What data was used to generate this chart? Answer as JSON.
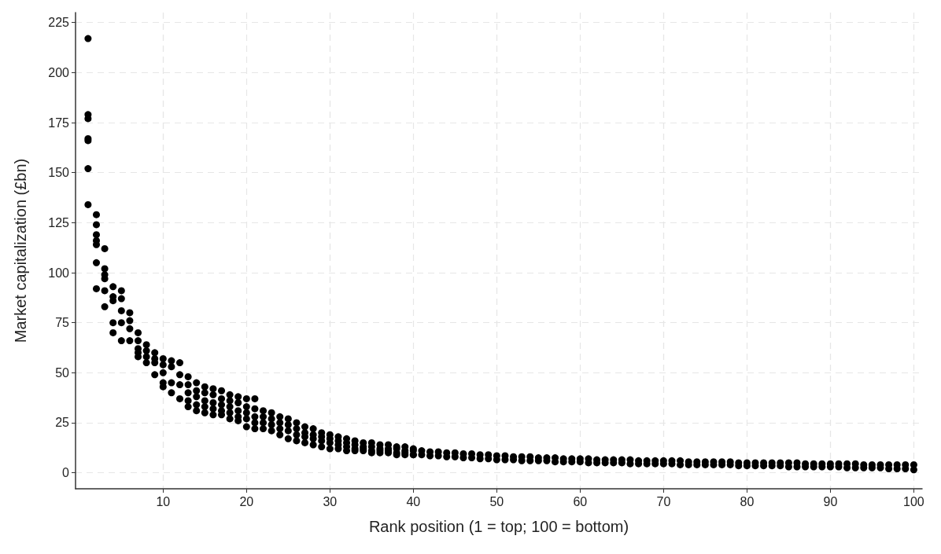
{
  "chart_data": {
    "type": "scatter",
    "xlabel": "Rank position (1 = top; 100 = bottom)",
    "ylabel": "Market capitalization (£bn)",
    "xlim": [
      -0.5,
      101
    ],
    "xticks": [
      10,
      20,
      30,
      40,
      50,
      60,
      70,
      80,
      90,
      100
    ],
    "ylim": [
      -8,
      230
    ],
    "yticks": [
      0,
      25,
      50,
      75,
      100,
      125,
      150,
      175,
      200,
      225
    ],
    "grid": true,
    "marker": "circle",
    "series": [
      {
        "color": "#000000",
        "x": [
          1,
          1,
          1,
          1,
          1,
          1,
          1,
          2,
          2,
          2,
          2,
          2,
          2,
          2,
          3,
          3,
          3,
          3,
          3,
          3,
          4,
          4,
          4,
          4,
          4,
          5,
          5,
          5,
          5,
          5,
          6,
          6,
          6,
          6,
          7,
          7,
          7,
          7,
          7,
          8,
          8,
          8,
          8,
          9,
          9,
          9,
          9,
          10,
          10,
          10,
          10,
          10,
          11,
          11,
          11,
          11,
          12,
          12,
          12,
          12,
          13,
          13,
          13,
          13,
          13,
          14,
          14,
          14,
          14,
          14,
          15,
          15,
          15,
          15,
          15,
          16,
          16,
          16,
          16,
          16,
          17,
          17,
          17,
          17,
          17,
          18,
          18,
          18,
          18,
          18,
          19,
          19,
          19,
          19,
          19,
          20,
          20,
          20,
          20,
          20,
          21,
          21,
          21,
          21,
          21,
          22,
          22,
          22,
          22,
          23,
          23,
          23,
          23,
          24,
          24,
          24,
          24,
          25,
          25,
          25,
          25,
          26,
          26,
          26,
          26,
          27,
          27,
          27,
          27,
          28,
          28,
          28,
          28,
          29,
          29,
          29,
          29,
          30,
          30,
          30,
          30,
          31,
          31,
          31,
          31,
          32,
          32,
          32,
          32,
          33,
          33,
          33,
          33,
          34,
          34,
          34,
          34,
          35,
          35,
          35,
          35,
          36,
          36,
          36,
          36,
          37,
          37,
          37,
          37,
          38,
          38,
          38,
          38,
          39,
          39,
          39,
          39,
          40,
          40,
          40,
          40,
          41,
          41,
          42,
          42,
          43,
          43,
          44,
          44,
          45,
          45,
          46,
          46,
          47,
          47,
          48,
          48,
          49,
          49,
          50,
          50,
          51,
          51,
          52,
          52,
          53,
          53,
          54,
          54,
          55,
          55,
          56,
          56,
          57,
          57,
          58,
          58,
          59,
          59,
          60,
          60,
          61,
          61,
          62,
          62,
          63,
          63,
          64,
          64,
          65,
          65,
          66,
          66,
          67,
          67,
          68,
          68,
          69,
          69,
          70,
          70,
          71,
          71,
          72,
          72,
          73,
          73,
          74,
          74,
          75,
          75,
          76,
          76,
          77,
          77,
          78,
          78,
          79,
          79,
          80,
          80,
          81,
          81,
          82,
          82,
          83,
          83,
          84,
          84,
          85,
          85,
          86,
          86,
          87,
          87,
          88,
          88,
          89,
          89,
          90,
          90,
          91,
          91,
          92,
          92,
          93,
          93,
          94,
          94,
          95,
          95,
          96,
          96,
          97,
          97,
          98,
          98,
          99,
          99,
          100,
          100
        ],
        "values": [
          217,
          179,
          177,
          167,
          166,
          152,
          134,
          129,
          124,
          119,
          116,
          114,
          105,
          92,
          112,
          102,
          99,
          97,
          91,
          83,
          93,
          88,
          86,
          75,
          70,
          91,
          87,
          81,
          75,
          66,
          80,
          76,
          72,
          66,
          70,
          66,
          62,
          60,
          58,
          64,
          61,
          58,
          55,
          60,
          57,
          55,
          49,
          57,
          54,
          50,
          45,
          43,
          56,
          53,
          45,
          40,
          55,
          49,
          44,
          37,
          48,
          44,
          40,
          36,
          33,
          45,
          41,
          38,
          34,
          31,
          43,
          40,
          36,
          33,
          30,
          42,
          39,
          35,
          32,
          29,
          41,
          37,
          34,
          31,
          29,
          39,
          36,
          33,
          30,
          27,
          38,
          35,
          31,
          28,
          26,
          37,
          33,
          30,
          27,
          23,
          37,
          32,
          28,
          25,
          22,
          31,
          28,
          25,
          22,
          30,
          27,
          24,
          21,
          28,
          25,
          22,
          19,
          27,
          24,
          21,
          17,
          25,
          22,
          19,
          16,
          23,
          20,
          18,
          15,
          22,
          19,
          17,
          14,
          20,
          18,
          16,
          13,
          19,
          17,
          15,
          12,
          18,
          16,
          14,
          12,
          17,
          15,
          13,
          11,
          16,
          14,
          12,
          11,
          15,
          13,
          12,
          11,
          15,
          13,
          11,
          10,
          14,
          12,
          11,
          10,
          14,
          12,
          11,
          10,
          13,
          12,
          10,
          9,
          13,
          11,
          10,
          9,
          12,
          11,
          9,
          9,
          11,
          9,
          10.5,
          8.5,
          10.5,
          8.5,
          10,
          8,
          10,
          8,
          9.5,
          7.5,
          9.5,
          7.5,
          9,
          7,
          9,
          7,
          8.5,
          6.5,
          8.5,
          6.5,
          8,
          6.5,
          8,
          6,
          8,
          6,
          7.5,
          6,
          7.5,
          6,
          7.5,
          5.5,
          7,
          5.5,
          7,
          5.5,
          7,
          5.5,
          7,
          5,
          6.5,
          5,
          6.5,
          5,
          6.5,
          5,
          6.5,
          5,
          6.5,
          4.5,
          6,
          4.5,
          6,
          4.5,
          6,
          4.5,
          6,
          4.5,
          6,
          4.5,
          6,
          4,
          5.5,
          4,
          5.5,
          4,
          5.5,
          4,
          5.5,
          4,
          5.5,
          4,
          5.5,
          4,
          5,
          3.5,
          5,
          3.5,
          5,
          3.5,
          5,
          3.5,
          5,
          3.5,
          5,
          3.5,
          5,
          3,
          5,
          3,
          4.5,
          3,
          4.5,
          3,
          4.5,
          3,
          4.5,
          3,
          4.5,
          3,
          4.5,
          2.5,
          4.5,
          2.5,
          4,
          2.5,
          4,
          2.5,
          4,
          2.5,
          4,
          2,
          4,
          2,
          4,
          2,
          4,
          1.5
        ]
      }
    ]
  }
}
